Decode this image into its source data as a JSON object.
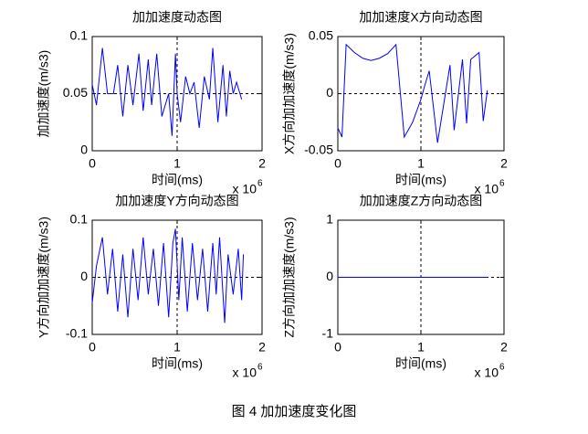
{
  "chart_data": [
    {
      "type": "line",
      "title": "加加速度动态图",
      "x_label": "时间(ms)",
      "y_label": "加加速度(m/s3)",
      "x_exponent_base": "x 10",
      "x_exponent": "6",
      "xlim": [
        0,
        2
      ],
      "xticks": [
        0,
        1,
        2
      ],
      "ylim": [
        0,
        0.1
      ],
      "yticks": [
        0,
        0.05,
        0.1
      ],
      "ref_x": 1,
      "ref_y": 0.05,
      "color": "#0000ff",
      "x": [
        0,
        0.05,
        0.12,
        0.18,
        0.25,
        0.3,
        0.36,
        0.42,
        0.48,
        0.55,
        0.6,
        0.66,
        0.7,
        0.76,
        0.82,
        0.9,
        0.94,
        0.98,
        1.0,
        1.04,
        1.1,
        1.15,
        1.2,
        1.26,
        1.32,
        1.38,
        1.42,
        1.48,
        1.54,
        1.58,
        1.62,
        1.66,
        1.7,
        1.76
      ],
      "values": [
        0.058,
        0.04,
        0.09,
        0.05,
        0.05,
        0.075,
        0.03,
        0.075,
        0.04,
        0.085,
        0.035,
        0.08,
        0.04,
        0.085,
        0.03,
        0.05,
        0.013,
        0.085,
        0.05,
        0.025,
        0.065,
        0.05,
        0.06,
        0.02,
        0.065,
        0.045,
        0.09,
        0.025,
        0.075,
        0.03,
        0.07,
        0.05,
        0.06,
        0.045
      ]
    },
    {
      "type": "line",
      "title": "加加速度X方向动态图",
      "x_label": "时间(ms)",
      "y_label": "X方向加加速度(m/s3)",
      "x_exponent_base": "x 10",
      "x_exponent": "6",
      "xlim": [
        0,
        2
      ],
      "xticks": [
        0,
        1,
        2
      ],
      "ylim": [
        -0.05,
        0.05
      ],
      "yticks": [
        -0.05,
        0,
        0.05
      ],
      "ref_x": 1,
      "ref_y": 0,
      "color": "#0000ff",
      "x": [
        0,
        0.05,
        0.1,
        0.2,
        0.3,
        0.4,
        0.5,
        0.6,
        0.7,
        0.8,
        0.9,
        1.0,
        1.05,
        1.1,
        1.2,
        1.35,
        1.4,
        1.5,
        1.55,
        1.6,
        1.7,
        1.75,
        1.8
      ],
      "values": [
        -0.03,
        -0.038,
        0.043,
        0.036,
        0.031,
        0.029,
        0.031,
        0.035,
        0.043,
        -0.038,
        -0.025,
        -0.005,
        0.008,
        0.02,
        -0.043,
        0.025,
        -0.032,
        0.03,
        -0.026,
        0.03,
        0.036,
        -0.024,
        0.003
      ]
    },
    {
      "type": "line",
      "title": "加加速度Y方向动态图",
      "x_label": "时间(ms)",
      "y_label": "Y方向加加速度(m/s3)",
      "x_exponent_base": "x 10",
      "x_exponent": "6",
      "xlim": [
        0,
        2
      ],
      "xticks": [
        0,
        1,
        2
      ],
      "ylim": [
        -0.1,
        0.1
      ],
      "yticks": [
        -0.1,
        0,
        0.1
      ],
      "ref_x": 1,
      "ref_y": 0,
      "color": "#0000ff",
      "x": [
        0,
        0.05,
        0.12,
        0.18,
        0.24,
        0.3,
        0.36,
        0.42,
        0.48,
        0.54,
        0.6,
        0.66,
        0.72,
        0.78,
        0.84,
        0.9,
        0.95,
        0.98,
        1.02,
        1.06,
        1.12,
        1.18,
        1.24,
        1.3,
        1.36,
        1.42,
        1.46,
        1.5,
        1.56,
        1.6,
        1.66,
        1.72,
        1.76,
        1.78
      ],
      "values": [
        -0.045,
        0.02,
        0.07,
        -0.03,
        0.05,
        -0.06,
        0.04,
        -0.07,
        0.05,
        -0.04,
        0.07,
        -0.03,
        0.05,
        -0.05,
        0.06,
        -0.07,
        0.06,
        0.085,
        -0.04,
        0.07,
        -0.06,
        0.06,
        -0.04,
        0.05,
        -0.06,
        0.06,
        -0.03,
        0.07,
        -0.08,
        0.04,
        -0.03,
        0.05,
        -0.04,
        0.04
      ]
    },
    {
      "type": "line",
      "title": "加加速度Z方向动态图",
      "x_label": "时间(ms)",
      "y_label": "Z方向加加速度(m/s3)",
      "x_exponent_base": "x 10",
      "x_exponent": "6",
      "xlim": [
        0,
        2
      ],
      "xticks": [
        0,
        1,
        2
      ],
      "ylim": [
        -1,
        1
      ],
      "yticks": [
        -1,
        0,
        1
      ],
      "ref_x": 1,
      "ref_y": 0,
      "color": "#0000ff",
      "x": [
        0,
        1.8
      ],
      "values": [
        0,
        0
      ]
    }
  ],
  "caption": "图 4  加加速度变化图"
}
